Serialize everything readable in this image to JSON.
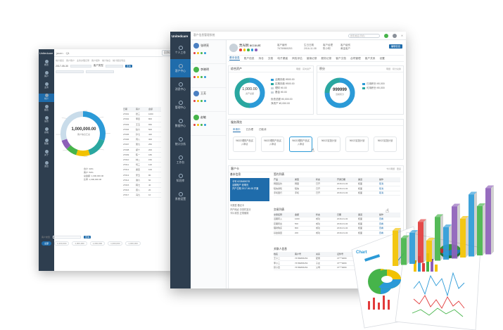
{
  "back_window": {
    "brand": "Unitedcare",
    "top_user": "javen",
    "top_tag": "Q1",
    "top_right": "回到客服",
    "tabs": [
      "统计报表",
      "客户账户",
      "业务办理记录",
      "客户组件",
      "统计信息",
      "统计报表导出"
    ],
    "filter_date": "2017-05-30",
    "filter_label": "客户类型",
    "query": "查询",
    "nav": [
      "概览",
      "客户",
      "业务",
      "统计",
      "报表",
      "设置",
      "系统",
      "帮助",
      "关于",
      "退出"
    ],
    "donut_value": "1,000,000.00",
    "donut_sub": "客户信息汇总",
    "table_headers": [
      "日期",
      "客户",
      "金额"
    ],
    "table_rows": [
      [
        "27001",
        "张三",
        "1000"
      ],
      [
        "27002",
        "李四",
        "800"
      ],
      [
        "27003",
        "王五",
        "650"
      ],
      [
        "27004",
        "赵六",
        "500"
      ],
      [
        "27005",
        "孙七",
        "420"
      ],
      [
        "27006",
        "周八",
        "300"
      ],
      [
        "27007",
        "吴九",
        "250"
      ],
      [
        "27008",
        "郑十",
        "200"
      ],
      [
        "27009",
        "陈一",
        "180"
      ],
      [
        "27010",
        "林二",
        "150"
      ],
      [
        "27011",
        "何三",
        "120"
      ],
      [
        "27012",
        "梁四",
        "100"
      ],
      [
        "27013",
        "宋五",
        "80"
      ],
      [
        "27014",
        "谢六",
        "60"
      ],
      [
        "27015",
        "韩七",
        "40"
      ],
      [
        "27016",
        "唐八",
        "20"
      ],
      [
        "27017",
        "冯九",
        "10"
      ]
    ],
    "stats": [
      "合计: 30%",
      "客户: 50%",
      "总金额: 1,000,000.00",
      "比率: 1,000,000.00"
    ],
    "bottom_label": "客户类型",
    "bottom_btn": "查询",
    "bottom_chips": [
      "全部",
      "1,000,000",
      "1,000,000",
      "1,000,000",
      "1,000,000",
      "1,000,000"
    ]
  },
  "front_window": {
    "logo": "Unitedcare",
    "nav": [
      {
        "label": "个人工作",
        "active": false
      },
      {
        "label": "客户中心",
        "active": true
      },
      {
        "label": "消息中心",
        "active": false
      },
      {
        "label": "管理中心",
        "active": false
      },
      {
        "label": "数据中心",
        "active": false
      },
      {
        "label": "统计分析",
        "active": false
      },
      {
        "label": "工作台",
        "active": false
      },
      {
        "label": "知识库",
        "active": false
      },
      {
        "label": "系统设置",
        "active": false
      }
    ],
    "topbar_title": "客户信息管理系统",
    "search_placeholder": "搜索(姓名/手机)",
    "contacts": [
      {
        "name": "张明亮",
        "color": "#4a7fc1"
      },
      {
        "name": "李晓明",
        "color": "#46b44a"
      },
      {
        "name": "王芳",
        "color": "#4a7fc1"
      },
      {
        "name": "赵敏",
        "color": "#46b44a"
      }
    ],
    "profile": {
      "name": "贾光明 account",
      "meta1": "客户编号\n76789865253",
      "meta2": "生日日期\n2016-11-08",
      "meta3": "客户经理\n陈小明",
      "meta4": "客户级别\n黄金客户",
      "button": "编辑信息"
    },
    "tabs": [
      "基本信息",
      "账户信息",
      "持仓",
      "交易",
      "电子渠道",
      "风险评估",
      "营销记录",
      "服务记录",
      "客户文档",
      "合同管理",
      "客户关系",
      "设置"
    ],
    "assets": {
      "title": "综合资产",
      "tags": [
        "明细",
        "实时资产"
      ],
      "center": "1,000.00",
      "center_sub": "资产总额",
      "legend": [
        "活期存款  ¥500.00",
        "定期存款  ¥500.00",
        "理财  ¥0.00",
        "基金  ¥0.00"
      ],
      "extra": [
        "负债总额  ¥0,000.00",
        "净资产  ¥0,000.00"
      ]
    },
    "points": {
      "title": "积分",
      "tags": [
        "明细",
        "积分兑换"
      ],
      "center": "999999",
      "center_sub": "当前积分",
      "legend": [
        "已用积分  ¥0,000",
        "可用积分  ¥0,000"
      ]
    },
    "services": {
      "title": "服务预览",
      "tabs": [
        "申请中",
        "已办理",
        "已取消"
      ],
      "cards": [
        "96022理财产品买入申请",
        "96022理财产品买入申请",
        "96022理财产品买入申请",
        "96022定投计划",
        "96022定投计划",
        "96022定投计划"
      ]
    },
    "customer": {
      "title": "客户卡",
      "right_tags": [
        "卡片明细",
        "更多"
      ],
      "basic_title": "基本信息",
      "card_no": "卡号 6228480078",
      "card_lines": [
        "活期账户  张明光",
        "开户日期  2017-06-08 开通"
      ],
      "kv": [
        "卡类型   借记卡",
        "开户网点   中关村支行",
        "卡片状态   正常使用"
      ],
      "tbl1_title": "签约列表",
      "tbl1_head": [
        "产品",
        "类型",
        "状态",
        "开通日期",
        "渠道",
        "操作"
      ],
      "tbl1_rows": [
        [
          "网银签约",
          "网银",
          "已开",
          "2016-01-02",
          "柜面",
          "取消"
        ],
        [
          "短信通知",
          "短信",
          "已开",
          "2016-01-02",
          "柜面",
          "取消"
        ],
        [
          "手机银行",
          "手机",
          "已开",
          "2016-01-02",
          "柜面",
          "取消"
        ]
      ],
      "tbl2_title": "交易列表",
      "tbl2_head": [
        "交易名称",
        "金额",
        "状态",
        "日期",
        "渠道",
        "操作"
      ],
      "tbl2_rows": [
        [
          "活期转入",
          "1000",
          "成功",
          "2016-01-02",
          "柜面",
          "查看"
        ],
        [
          "定期转出",
          "500",
          "成功",
          "2016-01-02",
          "柜面",
          "查看"
        ],
        [
          "理财购买",
          "800",
          "成功",
          "2016-01-02",
          "柜面",
          "查看"
        ],
        [
          "基金赎回",
          "200",
          "成功",
          "2016-01-02",
          "柜面",
          "查看"
        ]
      ],
      "tbl3_title": "关联人信息",
      "tbl3_head": [
        "姓名",
        "客户号",
        "关系",
        "证件号",
        "操作"
      ],
      "tbl3_rows": [
        [
          "王小二",
          "76789865253",
          "配偶",
          "37***0089",
          "查看"
        ],
        [
          "李小三",
          "76789865253",
          "子女",
          "37***0089",
          "查看"
        ],
        [
          "张小四",
          "76789865253",
          "父母",
          "37***0089",
          "查看"
        ]
      ]
    }
  },
  "colors": {
    "nav_dark": "#2e3e4f",
    "accent": "#1f6cab",
    "donut_blue": "#2b9ad7",
    "donut_teal": "#2aa7a0",
    "green": "#46b44a",
    "yellow": "#f2c200",
    "red": "#e23b3b",
    "purple": "#8d5fb8"
  }
}
